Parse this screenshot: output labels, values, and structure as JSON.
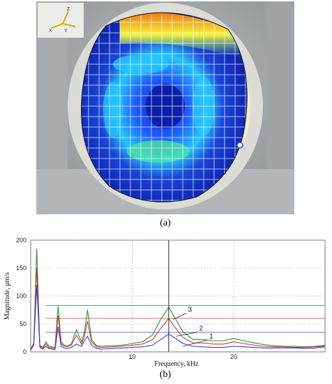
{
  "figure": {
    "panel_a_caption": "(a)",
    "panel_b_caption": "(b)"
  },
  "photo": {
    "description_icons": [
      "axes-triad-icon"
    ],
    "axis_letters": [
      "Z",
      "X",
      "Y"
    ],
    "colormap": [
      "#0b1fa8",
      "#1e5bff",
      "#25c7ff",
      "#4fe39c",
      "#f4f23a",
      "#f07a18"
    ]
  },
  "chart_data": {
    "type": "line",
    "xlabel": "Frequency, kHz",
    "ylabel": "Magnitude, μm/s",
    "xlim": [
      0,
      29
    ],
    "ylim": [
      0,
      200
    ],
    "x_ticks": [
      "10",
      "20"
    ],
    "x_tick_values": [
      10,
      20
    ],
    "y_ticks": [
      "0",
      "50",
      "100",
      "150",
      "200"
    ],
    "y_tick_values": [
      0,
      50,
      100,
      150,
      200
    ],
    "grid": true,
    "cursor_x": 13.6,
    "series": [
      {
        "name": "1",
        "color": "#3b3bd6",
        "reference_level": 35,
        "x": [
          0,
          0.3,
          0.6,
          0.9,
          1.2,
          1.5,
          1.8,
          2.1,
          2.4,
          2.7,
          3.0,
          3.3,
          3.6,
          4.0,
          4.5,
          5.0,
          5.3,
          5.6,
          6.0,
          6.5,
          7.0,
          8.0,
          9.0,
          10.0,
          11.0,
          12.0,
          12.8,
          13.6,
          14.3,
          15.0,
          16.0,
          17.0,
          18.0,
          19.0,
          20.0,
          21.0,
          22.0,
          23.0,
          24.0,
          25.0,
          26.0,
          27.0,
          28.0,
          29.0
        ],
        "y": [
          3,
          12,
          120,
          8,
          5,
          10,
          6,
          5,
          4,
          45,
          10,
          7,
          6,
          8,
          14,
          10,
          20,
          28,
          12,
          6,
          5,
          6,
          7,
          8,
          9,
          12,
          22,
          32,
          24,
          15,
          10,
          9,
          8,
          8,
          10,
          9,
          8,
          7,
          7,
          7,
          7,
          6,
          7,
          9
        ]
      },
      {
        "name": "2",
        "color": "#d23a2a",
        "reference_level": 60,
        "x": [
          0,
          0.3,
          0.6,
          0.9,
          1.2,
          1.5,
          1.8,
          2.1,
          2.4,
          2.7,
          3.0,
          3.3,
          3.6,
          4.0,
          4.5,
          5.0,
          5.3,
          5.6,
          6.0,
          6.5,
          7.0,
          8.0,
          9.0,
          10.0,
          11.0,
          12.0,
          12.8,
          13.6,
          14.3,
          15.0,
          16.0,
          17.0,
          18.0,
          19.0,
          20.0,
          21.0,
          22.0,
          23.0,
          24.0,
          25.0,
          26.0,
          27.0,
          28.0,
          29.0
        ],
        "y": [
          4,
          14,
          150,
          10,
          7,
          14,
          8,
          7,
          6,
          65,
          14,
          10,
          9,
          12,
          30,
          14,
          28,
          55,
          18,
          9,
          8,
          9,
          10,
          12,
          14,
          22,
          42,
          60,
          42,
          26,
          16,
          16,
          14,
          14,
          18,
          15,
          12,
          10,
          9,
          9,
          8,
          8,
          9,
          10
        ]
      },
      {
        "name": "3",
        "color": "#2a8f3a",
        "reference_level": 83,
        "x": [
          0,
          0.3,
          0.6,
          0.9,
          1.2,
          1.5,
          1.8,
          2.1,
          2.4,
          2.7,
          3.0,
          3.3,
          3.6,
          4.0,
          4.5,
          5.0,
          5.3,
          5.6,
          6.0,
          6.5,
          7.0,
          8.0,
          9.0,
          10.0,
          11.0,
          12.0,
          12.8,
          13.6,
          14.3,
          15.0,
          16.0,
          17.0,
          18.0,
          19.0,
          20.0,
          21.0,
          22.0,
          23.0,
          24.0,
          25.0,
          26.0,
          27.0,
          28.0,
          29.0
        ],
        "y": [
          5,
          16,
          185,
          12,
          8,
          18,
          10,
          9,
          8,
          82,
          18,
          12,
          11,
          14,
          40,
          18,
          36,
          75,
          22,
          11,
          10,
          11,
          12,
          15,
          18,
          30,
          58,
          80,
          58,
          36,
          22,
          22,
          20,
          20,
          24,
          20,
          16,
          13,
          11,
          10,
          10,
          9,
          10,
          12
        ]
      }
    ]
  }
}
